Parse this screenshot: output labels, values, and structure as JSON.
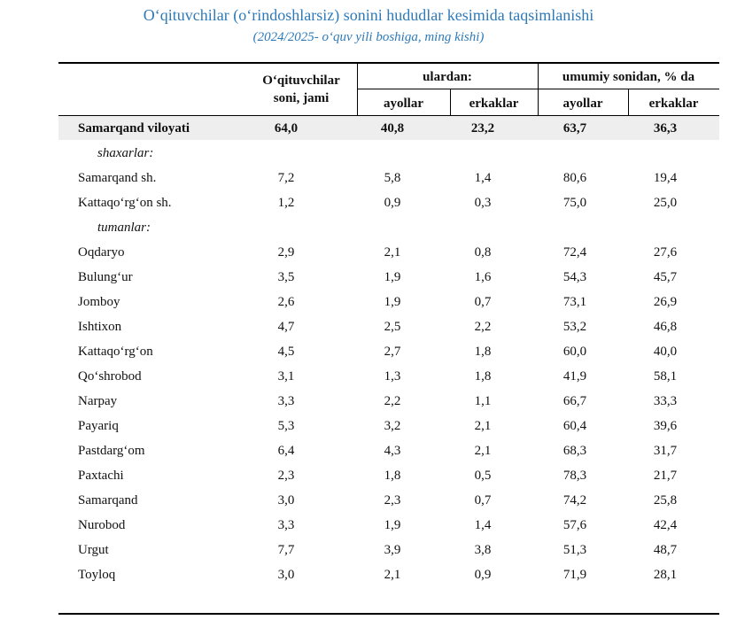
{
  "title": "O‘qituvchilar (o‘rindoshlarsiz) sonini hududlar kesimida taqsimlanishi",
  "subtitle": "(2024/2025- o‘quv yili boshiga, ming kishi)",
  "header": {
    "total_col": "O‘qituvchilar soni, jami",
    "group_ulardan": "ulardan:",
    "group_percent": "umumiy sonidan, % da",
    "women": "ayollar",
    "men": "erkaklar"
  },
  "rows": [
    {
      "name": "Samarqand viloyati",
      "total": "64,0",
      "women": "40,8",
      "men": "23,2",
      "women_pct": "63,7",
      "men_pct": "36,3",
      "kind": "total"
    },
    {
      "name": "shaxarlar:",
      "total": "",
      "women": "",
      "men": "",
      "women_pct": "",
      "men_pct": "",
      "kind": "section"
    },
    {
      "name": "Samarqand sh.",
      "total": "7,2",
      "women": "5,8",
      "men": "1,4",
      "women_pct": "80,6",
      "men_pct": "19,4",
      "kind": "item"
    },
    {
      "name": "Kattaqo‘rg‘on sh.",
      "total": "1,2",
      "women": "0,9",
      "men": "0,3",
      "women_pct": "75,0",
      "men_pct": "25,0",
      "kind": "item"
    },
    {
      "name": "tumanlar:",
      "total": "",
      "women": "",
      "men": "",
      "women_pct": "",
      "men_pct": "",
      "kind": "section"
    },
    {
      "name": "Oqdaryo",
      "total": "2,9",
      "women": "2,1",
      "men": "0,8",
      "women_pct": "72,4",
      "men_pct": "27,6",
      "kind": "item"
    },
    {
      "name": "Bulung‘ur",
      "total": "3,5",
      "women": "1,9",
      "men": "1,6",
      "women_pct": "54,3",
      "men_pct": "45,7",
      "kind": "item"
    },
    {
      "name": "Jomboy",
      "total": "2,6",
      "women": "1,9",
      "men": "0,7",
      "women_pct": "73,1",
      "men_pct": "26,9",
      "kind": "item"
    },
    {
      "name": "Ishtixon",
      "total": "4,7",
      "women": "2,5",
      "men": "2,2",
      "women_pct": "53,2",
      "men_pct": "46,8",
      "kind": "item"
    },
    {
      "name": "Kattaqo‘rg‘on",
      "total": "4,5",
      "women": "2,7",
      "men": "1,8",
      "women_pct": "60,0",
      "men_pct": "40,0",
      "kind": "item"
    },
    {
      "name": "Qo‘shrobod",
      "total": "3,1",
      "women": "1,3",
      "men": "1,8",
      "women_pct": "41,9",
      "men_pct": "58,1",
      "kind": "item"
    },
    {
      "name": "Narpay",
      "total": "3,3",
      "women": "2,2",
      "men": "1,1",
      "women_pct": "66,7",
      "men_pct": "33,3",
      "kind": "item"
    },
    {
      "name": "Payariq",
      "total": "5,3",
      "women": "3,2",
      "men": "2,1",
      "women_pct": "60,4",
      "men_pct": "39,6",
      "kind": "item"
    },
    {
      "name": "Pastdarg‘om",
      "total": "6,4",
      "women": "4,3",
      "men": "2,1",
      "women_pct": "68,3",
      "men_pct": "31,7",
      "kind": "item"
    },
    {
      "name": "Paxtachi",
      "total": "2,3",
      "women": "1,8",
      "men": "0,5",
      "women_pct": "78,3",
      "men_pct": "21,7",
      "kind": "item"
    },
    {
      "name": "Samarqand",
      "total": "3,0",
      "women": "2,3",
      "men": "0,7",
      "women_pct": "74,2",
      "men_pct": "25,8",
      "kind": "item"
    },
    {
      "name": "Nurobod",
      "total": "3,3",
      "women": "1,9",
      "men": "1,4",
      "women_pct": "57,6",
      "men_pct": "42,4",
      "kind": "item"
    },
    {
      "name": "Urgut",
      "total": "7,7",
      "women": "3,9",
      "men": "3,8",
      "women_pct": "51,3",
      "men_pct": "48,7",
      "kind": "item"
    },
    {
      "name": "Toyloq",
      "total": "3,0",
      "women": "2,1",
      "men": "0,9",
      "women_pct": "71,9",
      "men_pct": "28,1",
      "kind": "item"
    }
  ]
}
